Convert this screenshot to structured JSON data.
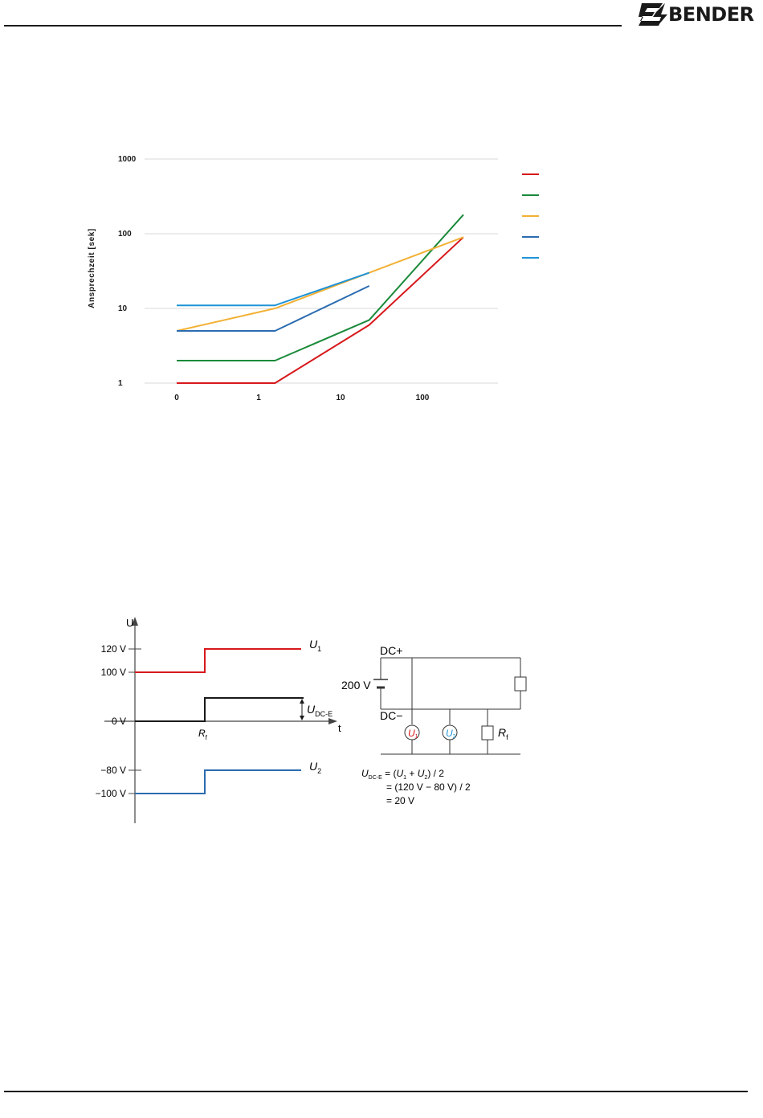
{
  "header": {
    "brand": "BENDER"
  },
  "chart_data": {
    "type": "line",
    "ylabel": "Ansprechzeit [sek]",
    "xlabel": "",
    "yscale": "log",
    "ylim": [
      1,
      1000
    ],
    "yticks": [
      1,
      10,
      100,
      1000
    ],
    "ytick_labels": [
      "1",
      "10",
      "100",
      "1000"
    ],
    "xtick_labels": [
      "0",
      "1",
      "10",
      "100"
    ],
    "grid": "horizontal",
    "legend": "top-right",
    "series": [
      {
        "color": "#d7191c",
        "points": [
          [
            0,
            1
          ],
          [
            1.2,
            1
          ],
          [
            2.35,
            6
          ],
          [
            3.5,
            90
          ]
        ]
      },
      {
        "color": "#1a8a3a",
        "points": [
          [
            0,
            2
          ],
          [
            1.2,
            2
          ],
          [
            2.35,
            7
          ],
          [
            3.5,
            180
          ]
        ]
      },
      {
        "color": "#f2b134",
        "points": [
          [
            0,
            5
          ],
          [
            1.2,
            10
          ],
          [
            2.35,
            30
          ],
          [
            3.5,
            90
          ]
        ]
      },
      {
        "color": "#2b6cb0",
        "points": [
          [
            0,
            5
          ],
          [
            1.2,
            5
          ],
          [
            2.35,
            20
          ]
        ]
      },
      {
        "color": "#1f93d6",
        "points": [
          [
            0,
            11
          ],
          [
            1.2,
            11
          ],
          [
            2.35,
            30
          ]
        ]
      }
    ]
  },
  "voltage_diagram": {
    "y_axis_label": "U",
    "t_axis_label": "t",
    "ticks": [
      "120 V",
      "100 V",
      "0 V",
      "−80 V",
      "−100 V"
    ],
    "u1_label": "U",
    "u1_sub": "1",
    "u2_label": "U",
    "u2_sub": "2",
    "udce_label": "U",
    "udce_sub": "DC-E",
    "rf_label": "R",
    "rf_sub": "f",
    "colors": {
      "u1": "#d7191c",
      "u2": "#2b6cb0",
      "udce": "#1a1a1a"
    }
  },
  "circuit": {
    "dc_plus": "DC+",
    "dc_minus": "DC−",
    "source": "200 V",
    "meter1": "U",
    "meter1_sub": "1",
    "meter2": "U",
    "meter2_sub": "2",
    "rf_label": "R",
    "rf_sub": "f",
    "formula_lhs": "U",
    "formula_lhs_sub": "DC-E",
    "formula_line1_a": " = (",
    "formula_line1_u1": "U",
    "formula_line1_u1_sub": "1",
    "formula_line1_b": " + ",
    "formula_line1_u2": "U",
    "formula_line1_u2_sub": "2",
    "formula_line1_c": ") / 2",
    "formula_line2": "= (120 V − 80 V) / 2",
    "formula_line3": "= 20 V"
  }
}
